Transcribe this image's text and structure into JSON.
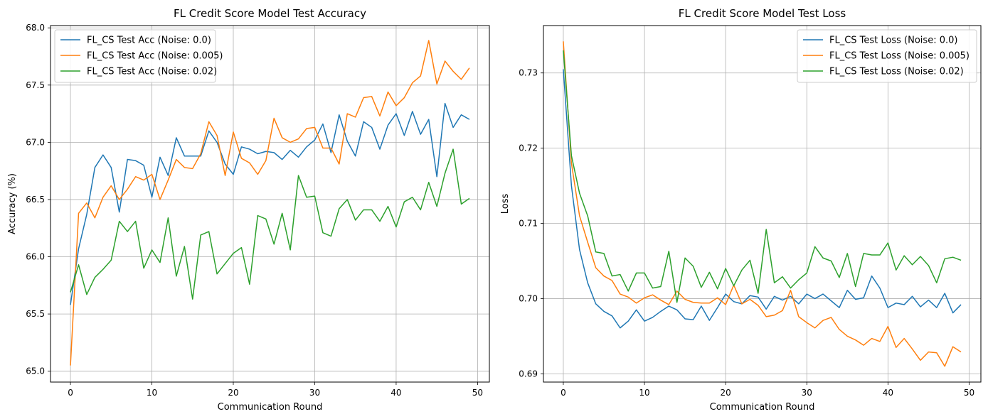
{
  "chart_data": [
    {
      "type": "line",
      "title": "FL Credit Score Model Test Accuracy",
      "xlabel": "Communication Round",
      "ylabel": "Accuracy (%)",
      "xlim": [
        -2.45,
        51.45
      ],
      "ylim": [
        64.905,
        68.02
      ],
      "xticks": [
        0,
        10,
        20,
        30,
        40,
        50
      ],
      "yticks": [
        65.0,
        65.5,
        66.0,
        66.5,
        67.0,
        67.5,
        68.0
      ],
      "ytick_decimals": 1,
      "grid": true,
      "legend_position": "top-left",
      "x": [
        0,
        1,
        2,
        3,
        4,
        5,
        6,
        7,
        8,
        9,
        10,
        11,
        12,
        13,
        14,
        15,
        16,
        17,
        18,
        19,
        20,
        21,
        22,
        23,
        24,
        25,
        26,
        27,
        28,
        29,
        30,
        31,
        32,
        33,
        34,
        35,
        36,
        37,
        38,
        39,
        40,
        41,
        42,
        43,
        44,
        45,
        46,
        47,
        48,
        49
      ],
      "series": [
        {
          "name": "FL_CS Test Acc (Noise: 0.0)",
          "color": "#1f77b4",
          "values": [
            65.58,
            66.07,
            66.37,
            66.78,
            66.89,
            66.78,
            66.39,
            66.85,
            66.84,
            66.8,
            66.52,
            66.87,
            66.71,
            67.04,
            66.88,
            66.88,
            66.88,
            67.1,
            67.0,
            66.81,
            66.72,
            66.96,
            66.94,
            66.9,
            66.92,
            66.91,
            66.85,
            66.93,
            66.87,
            66.96,
            67.02,
            67.16,
            66.91,
            67.24,
            67.01,
            66.88,
            67.18,
            67.13,
            66.94,
            67.15,
            67.25,
            67.06,
            67.27,
            67.07,
            67.2,
            66.7,
            67.34,
            67.13,
            67.24,
            67.2
          ]
        },
        {
          "name": "FL_CS Test Acc (Noise: 0.005)",
          "color": "#ff7f0e",
          "values": [
            65.05,
            66.38,
            66.47,
            66.34,
            66.52,
            66.62,
            66.5,
            66.59,
            66.7,
            66.67,
            66.72,
            66.5,
            66.67,
            66.85,
            66.78,
            66.77,
            66.9,
            67.18,
            67.06,
            66.71,
            67.09,
            66.86,
            66.82,
            66.72,
            66.84,
            67.21,
            67.04,
            67.0,
            67.03,
            67.12,
            67.13,
            66.95,
            66.95,
            66.81,
            67.25,
            67.22,
            67.39,
            67.4,
            67.23,
            67.44,
            67.32,
            67.39,
            67.52,
            67.58,
            67.89,
            67.51,
            67.71,
            67.62,
            67.55,
            67.65
          ]
        },
        {
          "name": "FL_CS Test Acc (Noise: 0.02)",
          "color": "#2ca02c",
          "values": [
            65.69,
            65.93,
            65.67,
            65.82,
            65.89,
            65.97,
            66.31,
            66.22,
            66.31,
            65.9,
            66.06,
            65.95,
            66.34,
            65.83,
            66.09,
            65.63,
            66.19,
            66.22,
            65.85,
            65.94,
            66.03,
            66.08,
            65.76,
            66.36,
            66.33,
            66.11,
            66.38,
            66.06,
            66.71,
            66.52,
            66.53,
            66.21,
            66.18,
            66.42,
            66.5,
            66.32,
            66.41,
            66.41,
            66.31,
            66.44,
            66.26,
            66.48,
            66.52,
            66.41,
            66.65,
            66.44,
            66.73,
            66.94,
            66.46,
            66.51
          ]
        }
      ]
    },
    {
      "type": "line",
      "title": "FL Credit Score Model Test Loss",
      "xlabel": "Communication Round",
      "ylabel": "Loss",
      "xlim": [
        -2.45,
        51.45
      ],
      "ylim": [
        0.6889,
        0.7363
      ],
      "xticks": [
        0,
        10,
        20,
        30,
        40,
        50
      ],
      "yticks": [
        0.69,
        0.7,
        0.71,
        0.72,
        0.73
      ],
      "ytick_decimals": 2,
      "grid": true,
      "legend_position": "top-right",
      "x": [
        0,
        1,
        2,
        3,
        4,
        5,
        6,
        7,
        8,
        9,
        10,
        11,
        12,
        13,
        14,
        15,
        16,
        17,
        18,
        19,
        20,
        21,
        22,
        23,
        24,
        25,
        26,
        27,
        28,
        29,
        30,
        31,
        32,
        33,
        34,
        35,
        36,
        37,
        38,
        39,
        40,
        41,
        42,
        43,
        44,
        45,
        46,
        47,
        48,
        49
      ],
      "series": [
        {
          "name": "FL_CS Test Loss (Noise: 0.0)",
          "color": "#1f77b4",
          "values": [
            0.7305,
            0.715,
            0.7065,
            0.7021,
            0.6993,
            0.6983,
            0.6977,
            0.6961,
            0.697,
            0.6985,
            0.697,
            0.6975,
            0.6983,
            0.699,
            0.6985,
            0.6973,
            0.6972,
            0.699,
            0.6971,
            0.6988,
            0.7006,
            0.6996,
            0.6993,
            0.7004,
            0.7002,
            0.6986,
            0.7003,
            0.6998,
            0.7003,
            0.6993,
            0.7006,
            0.7,
            0.7006,
            0.6997,
            0.6988,
            0.7011,
            0.6999,
            0.7001,
            0.703,
            0.7014,
            0.6988,
            0.6994,
            0.6992,
            0.7003,
            0.6989,
            0.6998,
            0.6988,
            0.7007,
            0.6981,
            0.6992
          ]
        },
        {
          "name": "FL_CS Test Loss (Noise: 0.005)",
          "color": "#ff7f0e",
          "values": [
            0.7342,
            0.718,
            0.711,
            0.7075,
            0.7041,
            0.703,
            0.7024,
            0.7006,
            0.7002,
            0.6994,
            0.7001,
            0.7005,
            0.6998,
            0.6992,
            0.701,
            0.6999,
            0.6995,
            0.6994,
            0.6994,
            0.7001,
            0.6992,
            0.7018,
            0.6993,
            0.6999,
            0.6991,
            0.6976,
            0.6978,
            0.6984,
            0.7011,
            0.6976,
            0.6968,
            0.6961,
            0.6971,
            0.6975,
            0.6959,
            0.695,
            0.6945,
            0.6938,
            0.6947,
            0.6943,
            0.6963,
            0.6935,
            0.6947,
            0.6933,
            0.6918,
            0.6929,
            0.6928,
            0.691,
            0.6936,
            0.6929
          ]
        },
        {
          "name": "FL_CS Test Loss (Noise: 0.02)",
          "color": "#2ca02c",
          "values": [
            0.733,
            0.719,
            0.714,
            0.711,
            0.7062,
            0.706,
            0.703,
            0.7032,
            0.701,
            0.7034,
            0.7034,
            0.7014,
            0.7016,
            0.7063,
            0.6995,
            0.7054,
            0.7043,
            0.7015,
            0.7035,
            0.7013,
            0.704,
            0.7017,
            0.7038,
            0.7051,
            0.7007,
            0.7092,
            0.7021,
            0.7029,
            0.7014,
            0.7025,
            0.7034,
            0.7069,
            0.7054,
            0.705,
            0.7028,
            0.706,
            0.7016,
            0.706,
            0.7058,
            0.7058,
            0.7074,
            0.7038,
            0.7057,
            0.7045,
            0.7056,
            0.7044,
            0.7021,
            0.7053,
            0.7055,
            0.7051
          ]
        }
      ]
    }
  ]
}
